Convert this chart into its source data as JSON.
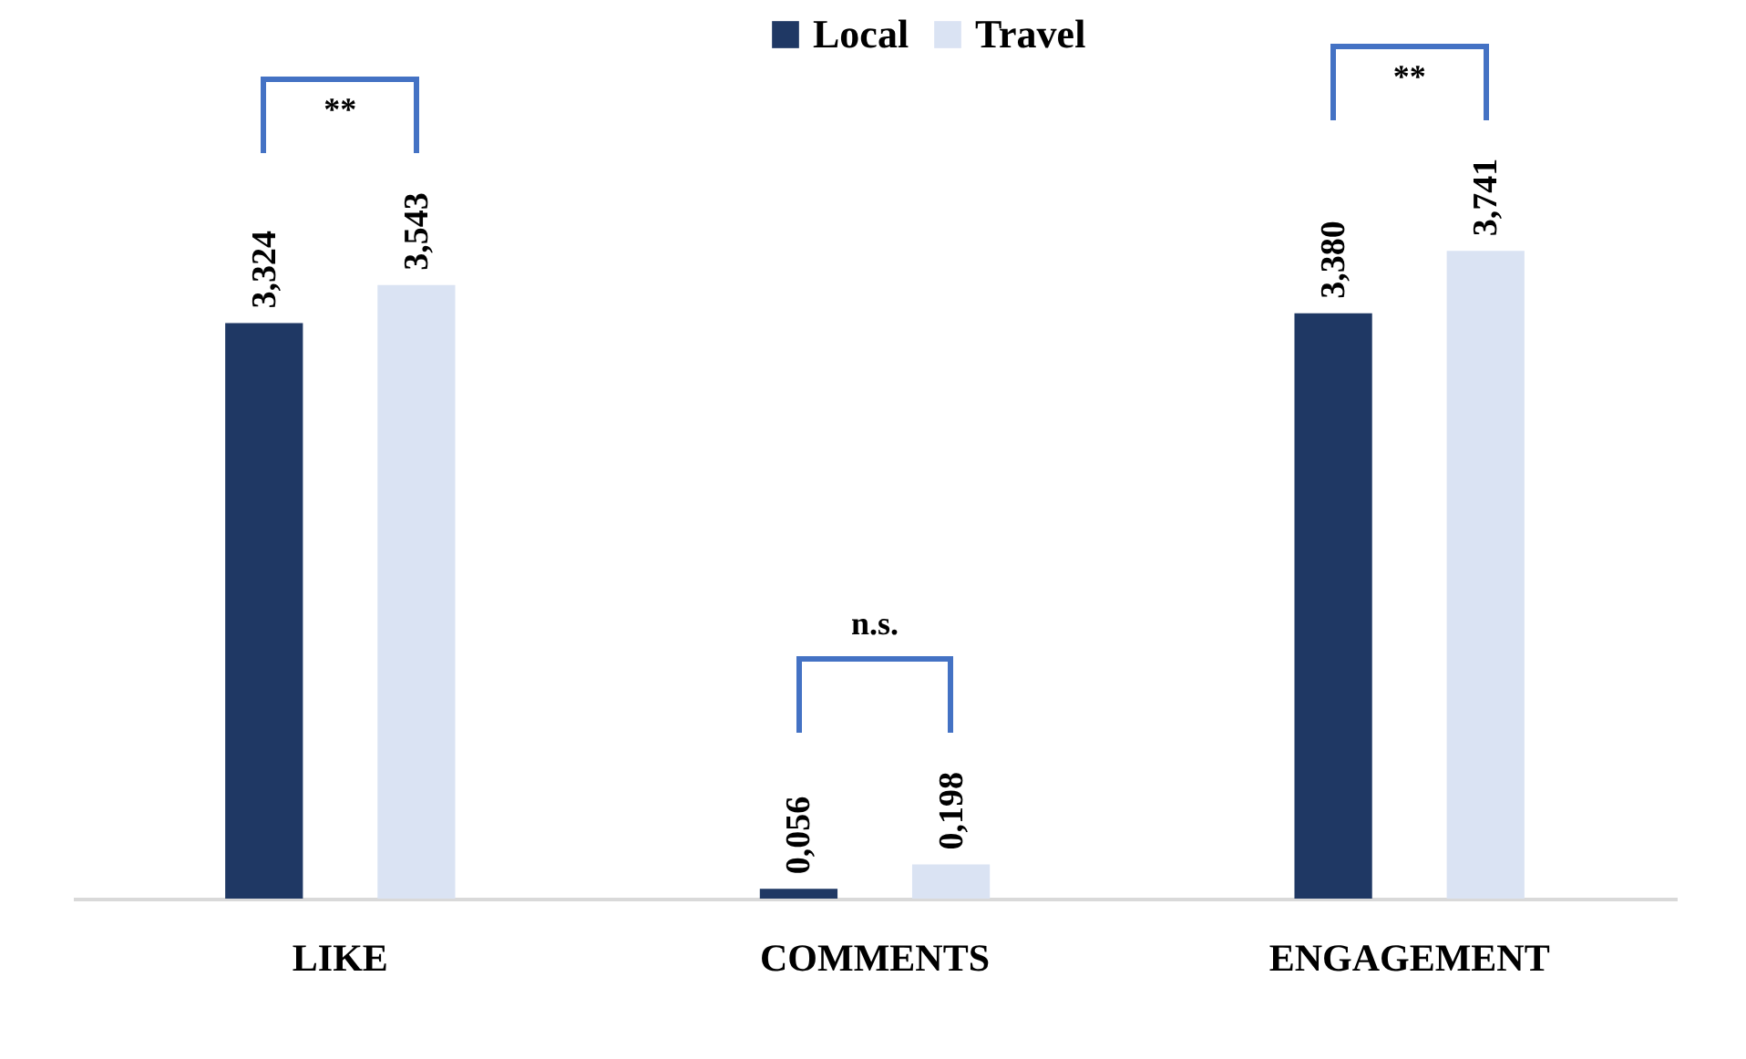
{
  "chart_data": {
    "type": "bar",
    "categories": [
      "LIKE",
      "COMMENTS",
      "ENGAGEMENT"
    ],
    "series": [
      {
        "name": "Local",
        "color": "#1f3864",
        "values": [
          3.324,
          0.056,
          3.38
        ],
        "value_labels": [
          "3,324",
          "0,056",
          "3,380"
        ]
      },
      {
        "name": "Travel",
        "color": "#dae3f3",
        "values": [
          3.543,
          0.198,
          3.741
        ],
        "value_labels": [
          "3,543",
          "0,198",
          "3,741"
        ]
      }
    ],
    "annotations": [
      "**",
      "n.s.",
      "**"
    ],
    "legend": "top"
  }
}
